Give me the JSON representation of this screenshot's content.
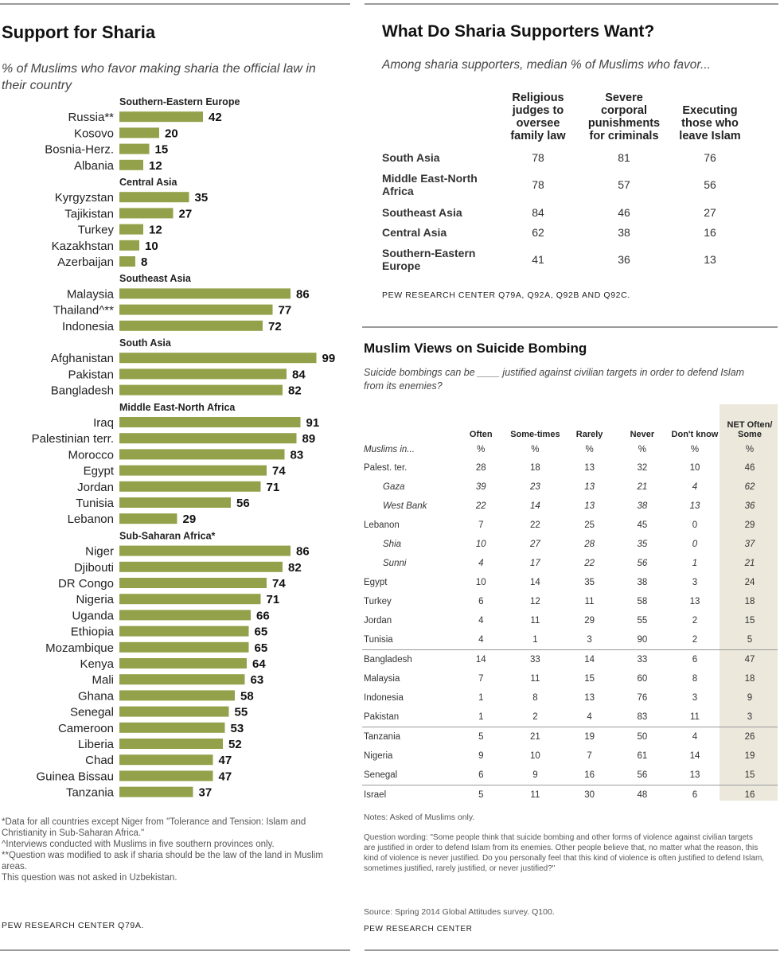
{
  "left_panel": {
    "title": "Support for Sharia",
    "subtitle": "% of Muslims who favor making sharia the official law in their country",
    "footnotes": "*Data for all countries except Niger from \"Tolerance and Tension: Islam and Christianity in Sub-Saharan Africa.\"\n^Interviews conducted with Muslims in five southern provinces only.\n**Question was modified to ask if sharia should be the law of the land in Muslim areas.\nThis question was not asked in Uzbekistan.",
    "source": "PEW RESEARCH CENTER Q79a."
  },
  "chart_data": {
    "type": "bar",
    "orientation": "horizontal",
    "title": "Support for Sharia",
    "subtitle": "% of Muslims who favor making sharia the official law in their country",
    "xlim": [
      0,
      100
    ],
    "grid": false,
    "bar_color": "#93a24a",
    "groups": [
      {
        "name": "Southern-Eastern  Europe",
        "items": [
          {
            "label": "Russia**",
            "value": 42
          },
          {
            "label": "Kosovo",
            "value": 20
          },
          {
            "label": "Bosnia-Herz.",
            "value": 15
          },
          {
            "label": "Albania",
            "value": 12
          }
        ]
      },
      {
        "name": "Central Asia",
        "items": [
          {
            "label": "Kyrgyzstan",
            "value": 35
          },
          {
            "label": "Tajikistan",
            "value": 27
          },
          {
            "label": "Turkey",
            "value": 12
          },
          {
            "label": "Kazakhstan",
            "value": 10
          },
          {
            "label": "Azerbaijan",
            "value": 8
          }
        ]
      },
      {
        "name": "Southeast  Asia",
        "items": [
          {
            "label": "Malaysia",
            "value": 86
          },
          {
            "label": "Thailand^**",
            "value": 77
          },
          {
            "label": "Indonesia",
            "value": 72
          }
        ]
      },
      {
        "name": "South Asia",
        "items": [
          {
            "label": "Afghanistan",
            "value": 99
          },
          {
            "label": "Pakistan",
            "value": 84
          },
          {
            "label": "Bangladesh",
            "value": 82
          }
        ]
      },
      {
        "name": "Middle East-North  Africa",
        "items": [
          {
            "label": "Iraq",
            "value": 91
          },
          {
            "label": "Palestinian terr.",
            "value": 89
          },
          {
            "label": "Morocco",
            "value": 83
          },
          {
            "label": "Egypt",
            "value": 74
          },
          {
            "label": "Jordan",
            "value": 71
          },
          {
            "label": "Tunisia",
            "value": 56
          },
          {
            "label": "Lebanon",
            "value": 29
          }
        ]
      },
      {
        "name": "Sub-Saharan  Africa*",
        "items": [
          {
            "label": "Niger",
            "value": 86
          },
          {
            "label": "Djibouti",
            "value": 82
          },
          {
            "label": "DR Congo",
            "value": 74
          },
          {
            "label": "Nigeria",
            "value": 71
          },
          {
            "label": "Uganda",
            "value": 66
          },
          {
            "label": "Ethiopia",
            "value": 65
          },
          {
            "label": "Mozambique",
            "value": 65
          },
          {
            "label": "Kenya",
            "value": 64
          },
          {
            "label": "Mali",
            "value": 63
          },
          {
            "label": "Ghana",
            "value": 58
          },
          {
            "label": "Senegal",
            "value": 55
          },
          {
            "label": "Cameroon",
            "value": 53
          },
          {
            "label": "Liberia",
            "value": 52
          },
          {
            "label": "Chad",
            "value": 47
          },
          {
            "label": "Guinea Bissau",
            "value": 47
          },
          {
            "label": "Tanzania",
            "value": 37
          }
        ]
      }
    ]
  },
  "sharia_table": {
    "title": "What Do Sharia Supporters Want?",
    "subtitle": "Among sharia supporters, median % of Muslims who favor...",
    "columns": [
      "Religious judges to oversee family law",
      "Severe corporal punishments for criminals",
      "Executing those who leave Islam"
    ],
    "rows": [
      {
        "region": "South Asia",
        "values": [
          "78",
          "81",
          "76"
        ]
      },
      {
        "region": "Middle East-North Africa",
        "values": [
          "78",
          "57",
          "56"
        ]
      },
      {
        "region": "Southeast Asia",
        "values": [
          "84",
          "46",
          "27"
        ]
      },
      {
        "region": "Central Asia",
        "values": [
          "62",
          "38",
          "16"
        ]
      },
      {
        "region": "Southern-Eastern Europe",
        "values": [
          "41",
          "36",
          "13"
        ]
      }
    ],
    "source": "PEW RESEARCH  CENTER Q79a, Q92a, Q92b and Q92c."
  },
  "bombing_table": {
    "title": "Muslim Views on Suicide Bombing",
    "subtitle": "Suicide bombings can be ____ justified against civilian targets in order to defend Islam from its enemies?",
    "columns": [
      "Often",
      "Some-times",
      "Rarely",
      "Never",
      "Don't know",
      "NET Often/ Some"
    ],
    "units_row": {
      "label": "Muslims in...",
      "values": [
        "%",
        "%",
        "%",
        "%",
        "%",
        "%"
      ]
    },
    "rows": [
      {
        "country": "Palest. ter.",
        "values": [
          "28",
          "18",
          "13",
          "32",
          "10",
          "46"
        ],
        "sub": false,
        "group_start": false
      },
      {
        "country": "Gaza",
        "values": [
          "39",
          "23",
          "13",
          "21",
          "4",
          "62"
        ],
        "sub": true,
        "group_start": false
      },
      {
        "country": "West Bank",
        "values": [
          "22",
          "14",
          "13",
          "38",
          "13",
          "36"
        ],
        "sub": true,
        "group_start": false
      },
      {
        "country": "Lebanon",
        "values": [
          "7",
          "22",
          "25",
          "45",
          "0",
          "29"
        ],
        "sub": false,
        "group_start": false
      },
      {
        "country": "Shia",
        "values": [
          "10",
          "27",
          "28",
          "35",
          "0",
          "37"
        ],
        "sub": true,
        "group_start": false
      },
      {
        "country": "Sunni",
        "values": [
          "4",
          "17",
          "22",
          "56",
          "1",
          "21"
        ],
        "sub": true,
        "group_start": false
      },
      {
        "country": "Egypt",
        "values": [
          "10",
          "14",
          "35",
          "38",
          "3",
          "24"
        ],
        "sub": false,
        "group_start": false
      },
      {
        "country": "Turkey",
        "values": [
          "6",
          "12",
          "11",
          "58",
          "13",
          "18"
        ],
        "sub": false,
        "group_start": false
      },
      {
        "country": "Jordan",
        "values": [
          "4",
          "11",
          "29",
          "55",
          "2",
          "15"
        ],
        "sub": false,
        "group_start": false
      },
      {
        "country": "Tunisia",
        "values": [
          "4",
          "1",
          "3",
          "90",
          "2",
          "5"
        ],
        "sub": false,
        "group_start": false
      },
      {
        "country": "Bangladesh",
        "values": [
          "14",
          "33",
          "14",
          "33",
          "6",
          "47"
        ],
        "sub": false,
        "group_start": true
      },
      {
        "country": "Malaysia",
        "values": [
          "7",
          "11",
          "15",
          "60",
          "8",
          "18"
        ],
        "sub": false,
        "group_start": false
      },
      {
        "country": "Indonesia",
        "values": [
          "1",
          "8",
          "13",
          "76",
          "3",
          "9"
        ],
        "sub": false,
        "group_start": false
      },
      {
        "country": "Pakistan",
        "values": [
          "1",
          "2",
          "4",
          "83",
          "11",
          "3"
        ],
        "sub": false,
        "group_start": false
      },
      {
        "country": "Tanzania",
        "values": [
          "5",
          "21",
          "19",
          "50",
          "4",
          "26"
        ],
        "sub": false,
        "group_start": true
      },
      {
        "country": "Nigeria",
        "values": [
          "9",
          "10",
          "7",
          "61",
          "14",
          "19"
        ],
        "sub": false,
        "group_start": false
      },
      {
        "country": "Senegal",
        "values": [
          "6",
          "9",
          "16",
          "56",
          "13",
          "15"
        ],
        "sub": false,
        "group_start": false
      },
      {
        "country": "Israel",
        "values": [
          "5",
          "11",
          "30",
          "48",
          "6",
          "16"
        ],
        "sub": false,
        "group_start": true
      }
    ],
    "notes": "Notes: Asked of Muslims only.",
    "question_wording": "Question wording: \"Some people think that suicide bombing and other forms of violence against civilian targets are justified in order to defend Islam from its enemies. Other people believe that, no matter what the reason, this kind of violence is never justified. Do you personally feel that this kind of violence is often justified to defend Islam, sometimes justified, rarely justified, or never justified?\"",
    "source_line": "Source: Spring 2014 Global Attitudes survey. Q100.",
    "credit": "PEW RESEARCH CENTER"
  }
}
